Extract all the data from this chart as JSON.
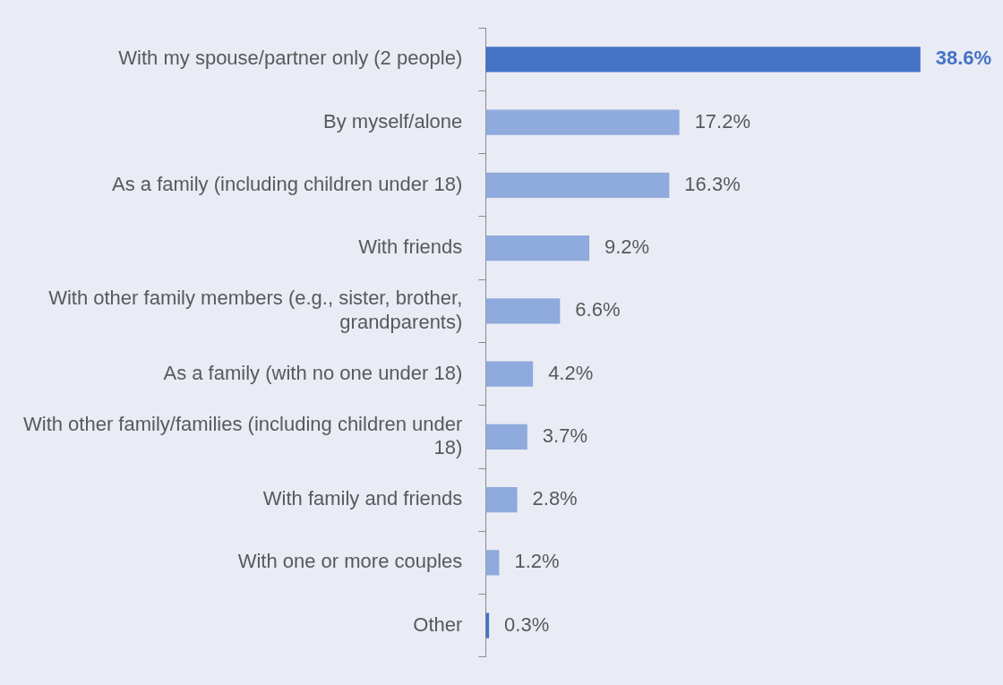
{
  "chart_data": {
    "type": "bar",
    "orientation": "horizontal",
    "categories": [
      "With my spouse/partner only (2 people)",
      "By myself/alone",
      "As a family (including children under 18)",
      "With friends",
      "With other family members (e.g., sister, brother, grandparents)",
      "As a family (with no one under 18)",
      "With other family/families (including children under 18)",
      "With family and friends",
      "With one or more couples",
      "Other"
    ],
    "values": [
      38.6,
      17.2,
      16.3,
      9.2,
      6.6,
      4.2,
      3.7,
      2.8,
      1.2,
      0.3
    ],
    "colors": [
      "#4472c4",
      "#8faadc",
      "#8faadc",
      "#8faadc",
      "#8faadc",
      "#8faadc",
      "#8faadc",
      "#8faadc",
      "#8faadc",
      "#4472c4"
    ],
    "value_labels": [
      "38.6%",
      "17.2%",
      "16.3%",
      "9.2%",
      "6.6%",
      "4.2%",
      "3.7%",
      "2.8%",
      "1.2%",
      "0.3%"
    ],
    "grid": false,
    "legend": false
  }
}
